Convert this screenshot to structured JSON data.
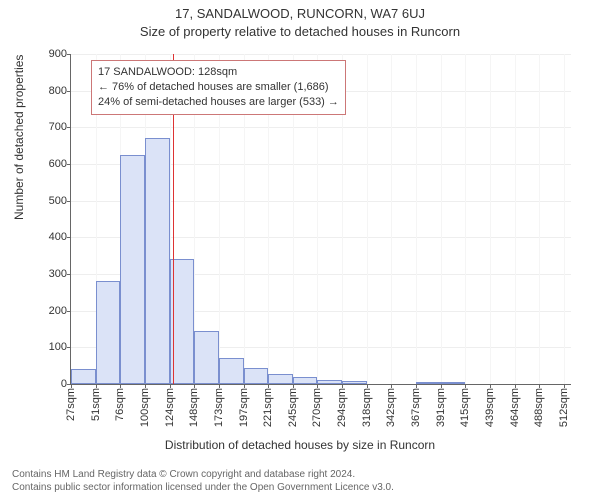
{
  "title": "17, SANDALWOOD, RUNCORN, WA7 6UJ",
  "subtitle": "Size of property relative to detached houses in Runcorn",
  "y_axis_label": "Number of detached properties",
  "x_axis_label": "Distribution of detached houses by size in Runcorn",
  "chart": {
    "type": "histogram",
    "background_color": "#ffffff",
    "grid_color": "#eeeeee",
    "axis_color": "#666666",
    "bar_fill": "#dbe3f7",
    "bar_stroke": "#7a8fcf",
    "marker_color": "#d33",
    "font_family": "Arial",
    "tick_fontsize": 11,
    "label_fontsize": 12,
    "title_fontsize": 13,
    "ylim": [
      0,
      900
    ],
    "yticks": [
      0,
      100,
      200,
      300,
      400,
      500,
      600,
      700,
      800,
      900
    ],
    "xlim_sqm": [
      27,
      524
    ],
    "bin_width_sqm": 24.5,
    "x_tick_labels": [
      "27sqm",
      "51sqm",
      "76sqm",
      "100sqm",
      "124sqm",
      "148sqm",
      "173sqm",
      "197sqm",
      "221sqm",
      "245sqm",
      "270sqm",
      "294sqm",
      "318sqm",
      "342sqm",
      "367sqm",
      "391sqm",
      "415sqm",
      "439sqm",
      "464sqm",
      "488sqm",
      "512sqm"
    ],
    "bars": [
      40,
      280,
      625,
      670,
      340,
      145,
      72,
      45,
      26,
      18,
      12,
      8,
      0,
      0,
      4,
      3,
      0,
      0,
      0,
      0
    ],
    "marker_sqm": 128
  },
  "annotation": {
    "line1": "17 SANDALWOOD: 128sqm",
    "line2": "← 76% of detached houses are smaller (1,686)",
    "line3": "24% of semi-detached houses are larger (533) →",
    "border_color": "#c77",
    "background": "#ffffff",
    "fontsize": 11
  },
  "footer": {
    "line1": "Contains HM Land Registry data © Crown copyright and database right 2024.",
    "line2": "Contains public sector information licensed under the Open Government Licence v3.0.",
    "color": "#666666",
    "fontsize": 10
  }
}
